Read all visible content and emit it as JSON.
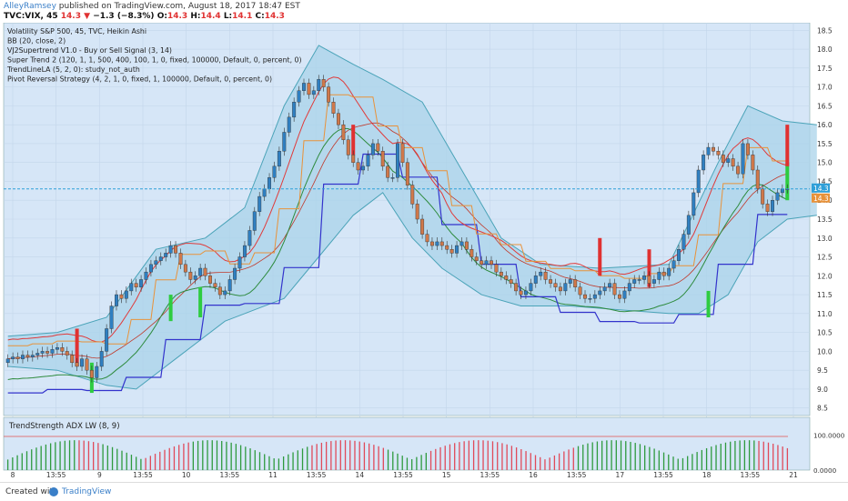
{
  "header": {
    "user": "AlleyRamsey",
    "publish_text": "published on TradingView.com, August 18, 2017 18:47 EST",
    "ticker": "TVC:VIX, 45",
    "last": "14.3",
    "change": "−1.3 (−8.3%)",
    "o_label": "O:",
    "o": "14.3",
    "h_label": "H:",
    "h": "14.4",
    "l_label": "L:",
    "l": "14.1",
    "c_label": "C:",
    "c": "14.3"
  },
  "legend": [
    "Volatility S&P 500, 45, TVC, Heikin Ashi",
    "BB (20, close, 2)",
    "VJ2Supertrend V1.0 - Buy or Sell Signal (3, 14)",
    "Super Trend 2 (120, 1, 1, 500, 400, 100, 1, 0, fixed, 100000, Default, 0, percent, 0)",
    "TrendLineLA (5, 2, 0): study_not_auth",
    "Pivot Reversal Strategy (4, 2, 1, 0, fixed, 1, 100000, Default, 0, percent, 0)"
  ],
  "indicator_label": "TrendStrength ADX LW (8, 9)",
  "footer": {
    "created_with": "Created with",
    "brand": "TradingView"
  },
  "colors": {
    "background": "#d6e6f7",
    "up_candle": "#2f7fc1",
    "down_candle": "#d0784a",
    "band_fill": "#a9d3ea",
    "band_line": "#4aa3b8",
    "price_line": "#2f9fd8",
    "supertrend_blue": "#3333cc",
    "supertrend_green": "#2e8b3e",
    "supertrend_red": "#e03a3a",
    "trend_orange": "#e8923a",
    "hist_green": "#2e9a3e",
    "hist_red": "#e04a5a"
  },
  "chart_data": {
    "type": "candlestick",
    "symbol": "TVC:VIX",
    "timeframe": "45",
    "ylim": [
      8.3,
      18.7
    ],
    "y_ticks": [
      "18.5",
      "18.0",
      "17.5",
      "17.0",
      "16.5",
      "16.0",
      "15.5",
      "15.0",
      "14.5",
      "14.0",
      "13.5",
      "13.0",
      "12.5",
      "12.0",
      "11.5",
      "11.0",
      "10.5",
      "10.0",
      "9.5",
      "9.0",
      "8.5"
    ],
    "x_ticks": [
      "8",
      "13:55",
      "9",
      "13:55",
      "10",
      "13:55",
      "11",
      "13:55",
      "14",
      "13:55",
      "15",
      "13:55",
      "16",
      "13:55",
      "17",
      "13:55",
      "18",
      "13:55",
      "21"
    ],
    "current_price": 14.3,
    "price_labels": [
      "14.3",
      "14.3"
    ],
    "close": [
      9.8,
      9.85,
      9.8,
      9.9,
      9.85,
      9.9,
      9.95,
      10.0,
      9.95,
      10.05,
      10.1,
      10.0,
      9.9,
      9.7,
      9.6,
      9.8,
      9.5,
      9.3,
      9.6,
      10.0,
      10.6,
      11.2,
      11.5,
      11.4,
      11.6,
      11.8,
      11.7,
      11.9,
      12.1,
      12.3,
      12.4,
      12.5,
      12.6,
      12.8,
      12.6,
      12.3,
      12.1,
      11.9,
      12.0,
      12.2,
      12.0,
      11.8,
      11.7,
      11.5,
      11.6,
      11.9,
      12.2,
      12.5,
      12.8,
      13.2,
      13.7,
      14.1,
      14.3,
      14.6,
      14.9,
      15.3,
      15.8,
      16.2,
      16.6,
      16.9,
      17.1,
      16.8,
      16.9,
      17.2,
      17.0,
      16.6,
      16.3,
      16.0,
      15.6,
      15.2,
      15.0,
      14.8,
      14.9,
      15.2,
      15.5,
      15.3,
      14.9,
      14.6,
      14.6,
      15.5,
      15.0,
      14.4,
      13.9,
      13.5,
      13.1,
      12.9,
      12.8,
      12.9,
      12.8,
      12.7,
      12.6,
      12.8,
      12.9,
      12.7,
      12.5,
      12.4,
      12.3,
      12.4,
      12.3,
      12.1,
      12.0,
      11.9,
      11.8,
      11.6,
      11.5,
      11.6,
      11.8,
      12.0,
      12.1,
      11.9,
      11.8,
      11.7,
      11.6,
      11.8,
      11.9,
      11.7,
      11.5,
      11.4,
      11.4,
      11.5,
      11.6,
      11.7,
      11.8,
      11.5,
      11.4,
      11.6,
      11.8,
      11.9,
      11.9,
      12.0,
      11.8,
      11.9,
      12.1,
      12.0,
      12.2,
      12.4,
      12.7,
      13.1,
      13.6,
      14.2,
      14.8,
      15.2,
      15.4,
      15.3,
      15.2,
      15.0,
      15.1,
      14.9,
      14.7,
      15.5,
      15.2,
      14.8,
      14.3,
      13.9,
      13.7,
      14.0,
      14.2,
      14.3,
      14.3
    ],
    "open": [
      9.7,
      9.8,
      9.85,
      9.8,
      9.9,
      9.85,
      9.9,
      9.95,
      10.0,
      9.95,
      10.05,
      10.1,
      10.0,
      9.9,
      9.7,
      9.6,
      9.8,
      9.5,
      9.3,
      9.6,
      10.0,
      10.6,
      11.2,
      11.5,
      11.4,
      11.6,
      11.8,
      11.7,
      11.9,
      12.1,
      12.3,
      12.4,
      12.5,
      12.6,
      12.8,
      12.6,
      12.3,
      12.1,
      11.9,
      12.0,
      12.2,
      12.0,
      11.8,
      11.7,
      11.5,
      11.6,
      11.9,
      12.2,
      12.5,
      12.8,
      13.2,
      13.7,
      14.1,
      14.3,
      14.6,
      14.9,
      15.3,
      15.8,
      16.2,
      16.6,
      16.9,
      17.1,
      16.8,
      16.9,
      17.2,
      17.0,
      16.6,
      16.3,
      16.0,
      15.6,
      15.2,
      15.0,
      14.8,
      14.9,
      15.2,
      15.5,
      15.3,
      14.9,
      14.6,
      14.6,
      15.5,
      15.0,
      14.4,
      13.9,
      13.5,
      13.1,
      12.9,
      12.8,
      12.9,
      12.8,
      12.7,
      12.6,
      12.8,
      12.9,
      12.7,
      12.5,
      12.4,
      12.3,
      12.4,
      12.3,
      12.1,
      12.0,
      11.9,
      11.8,
      11.6,
      11.5,
      11.6,
      11.8,
      12.0,
      12.1,
      11.9,
      11.8,
      11.7,
      11.6,
      11.8,
      11.9,
      11.7,
      11.5,
      11.4,
      11.4,
      11.5,
      11.6,
      11.7,
      11.8,
      11.5,
      11.4,
      11.6,
      11.8,
      11.9,
      11.9,
      12.0,
      11.8,
      11.9,
      12.1,
      12.0,
      12.2,
      12.4,
      12.7,
      13.1,
      13.6,
      14.2,
      14.8,
      15.2,
      15.4,
      15.3,
      15.2,
      15.0,
      15.1,
      14.9,
      14.7,
      15.5,
      15.2,
      14.8,
      14.3,
      13.9,
      13.7,
      14.0,
      14.2,
      14.3
    ],
    "bb_upper_points": [
      [
        0,
        10.4
      ],
      [
        10,
        10.5
      ],
      [
        20,
        10.9
      ],
      [
        30,
        12.7
      ],
      [
        40,
        13.0
      ],
      [
        48,
        13.8
      ],
      [
        56,
        16.5
      ],
      [
        63,
        18.1
      ],
      [
        70,
        17.6
      ],
      [
        76,
        17.2
      ],
      [
        84,
        16.6
      ],
      [
        92,
        14.8
      ],
      [
        100,
        13.0
      ],
      [
        108,
        12.3
      ],
      [
        120,
        12.2
      ],
      [
        134,
        12.3
      ],
      [
        144,
        15.0
      ],
      [
        150,
        16.5
      ],
      [
        157,
        16.1
      ],
      [
        164,
        16.0
      ]
    ],
    "bb_lower_points": [
      [
        0,
        9.6
      ],
      [
        10,
        9.5
      ],
      [
        20,
        9.1
      ],
      [
        26,
        9.0
      ],
      [
        34,
        9.8
      ],
      [
        44,
        10.8
      ],
      [
        50,
        11.1
      ],
      [
        56,
        11.4
      ],
      [
        63,
        12.5
      ],
      [
        70,
        13.6
      ],
      [
        76,
        14.2
      ],
      [
        82,
        13.0
      ],
      [
        88,
        12.2
      ],
      [
        96,
        11.5
      ],
      [
        104,
        11.2
      ],
      [
        114,
        11.2
      ],
      [
        124,
        11.1
      ],
      [
        134,
        11.0
      ],
      [
        140,
        11.0
      ],
      [
        146,
        11.5
      ],
      [
        152,
        12.9
      ],
      [
        158,
        13.5
      ],
      [
        164,
        13.6
      ]
    ],
    "adx_bars": [
      1,
      1,
      1,
      1,
      1,
      1,
      1,
      1,
      1,
      1,
      1,
      1,
      1,
      1,
      1,
      0,
      0,
      0,
      0,
      0,
      1,
      1,
      1,
      1,
      1,
      1,
      1,
      1,
      1,
      0,
      0,
      0,
      0,
      0,
      0,
      0,
      0,
      0,
      0,
      1,
      1,
      1,
      1,
      1,
      1,
      1,
      1,
      1,
      1,
      1,
      1,
      1,
      1,
      1,
      1,
      1,
      1,
      1,
      1,
      1,
      1,
      1,
      1,
      1,
      0,
      0,
      0,
      0,
      0,
      0,
      0,
      0,
      0,
      0,
      0,
      0,
      0,
      0,
      0,
      0,
      1,
      1,
      1,
      1,
      1,
      1,
      1,
      1,
      1,
      0,
      0,
      0,
      0,
      0,
      0,
      0,
      0,
      0,
      0,
      0,
      0,
      0,
      0,
      0,
      0,
      0,
      0,
      0,
      0,
      0,
      0,
      0,
      0,
      0,
      0,
      0,
      0,
      0,
      0,
      0,
      1,
      1,
      1,
      1,
      1,
      1,
      1,
      1,
      1,
      1,
      1,
      1,
      1,
      1,
      1,
      1,
      1,
      1,
      1,
      1,
      1,
      1,
      1,
      1,
      1,
      1,
      1,
      1,
      1,
      1,
      1,
      1,
      1,
      1,
      1,
      1,
      1,
      1,
      0,
      0,
      0,
      0,
      0,
      0,
      0
    ],
    "adx_ylim": [
      0,
      150
    ],
    "adx_ticks": [
      "100.0000",
      "0.0000"
    ]
  }
}
